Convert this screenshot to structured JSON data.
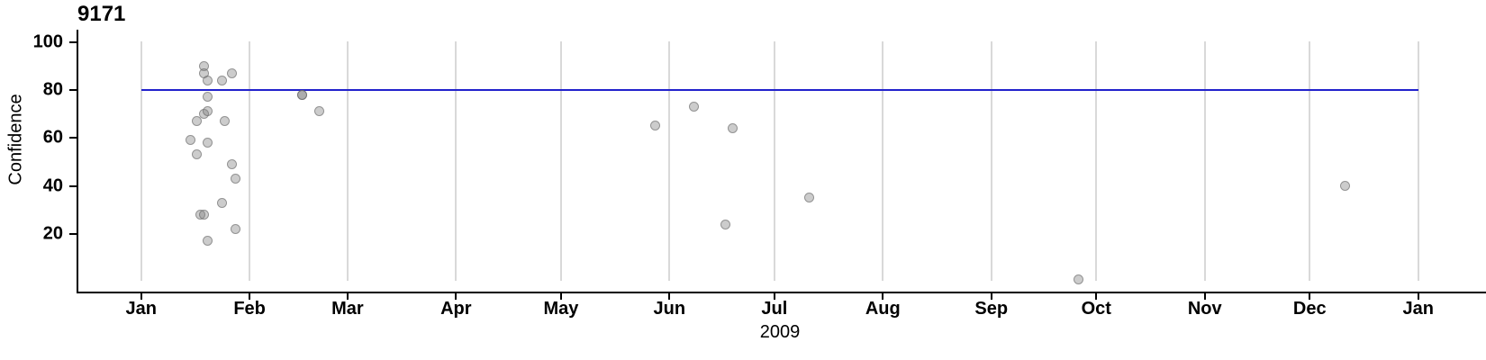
{
  "chart_data": {
    "type": "scatter",
    "title": "9171",
    "xlabel": "2009",
    "ylabel": "Confidence",
    "x_ticks": [
      "Jan",
      "Feb",
      "Mar",
      "Apr",
      "May",
      "Jun",
      "Jul",
      "Aug",
      "Sep",
      "Oct",
      "Nov",
      "Dec",
      "Jan"
    ],
    "y_ticks": [
      100,
      80,
      60,
      40,
      20
    ],
    "xlim": [
      "2009-01-01",
      "2010-01-01"
    ],
    "ylim": [
      0,
      100
    ],
    "grid": "vertical-months",
    "legend": "none",
    "reference_line": {
      "value": 80,
      "color": "#2222cc"
    },
    "points": [
      {
        "date": "2009-01-15",
        "value": 59
      },
      {
        "date": "2009-01-17",
        "value": 67
      },
      {
        "date": "2009-01-17",
        "value": 53
      },
      {
        "date": "2009-01-18",
        "value": 28
      },
      {
        "date": "2009-01-19",
        "value": 28
      },
      {
        "date": "2009-01-19",
        "value": 90
      },
      {
        "date": "2009-01-19",
        "value": 87
      },
      {
        "date": "2009-01-19",
        "value": 70
      },
      {
        "date": "2009-01-20",
        "value": 84
      },
      {
        "date": "2009-01-20",
        "value": 77
      },
      {
        "date": "2009-01-20",
        "value": 71
      },
      {
        "date": "2009-01-20",
        "value": 58
      },
      {
        "date": "2009-01-20",
        "value": 17
      },
      {
        "date": "2009-01-24",
        "value": 84
      },
      {
        "date": "2009-01-24",
        "value": 33
      },
      {
        "date": "2009-01-25",
        "value": 67
      },
      {
        "date": "2009-01-27",
        "value": 87
      },
      {
        "date": "2009-01-27",
        "value": 49
      },
      {
        "date": "2009-01-28",
        "value": 43
      },
      {
        "date": "2009-01-28",
        "value": 22
      },
      {
        "date": "2009-02-16",
        "value": 78
      },
      {
        "date": "2009-02-16",
        "value": 78
      },
      {
        "date": "2009-02-21",
        "value": 71
      },
      {
        "date": "2009-05-28",
        "value": 65
      },
      {
        "date": "2009-06-08",
        "value": 73
      },
      {
        "date": "2009-06-17",
        "value": 24
      },
      {
        "date": "2009-06-19",
        "value": 64
      },
      {
        "date": "2009-07-11",
        "value": 35
      },
      {
        "date": "2009-09-26",
        "value": 1
      },
      {
        "date": "2009-12-11",
        "value": 40
      }
    ],
    "colors": {
      "point_fill": "#c9c9c9",
      "point_stroke": "#a3a3a3",
      "gridline": "#d9d9d9",
      "axis": "#000000",
      "reference_line": "#2222cc"
    }
  }
}
